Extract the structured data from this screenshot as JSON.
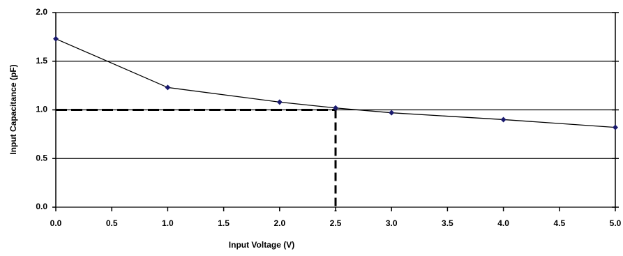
{
  "chart_data": {
    "type": "line",
    "x_label": "Input Voltage (V)",
    "y_label": "Input Capacitance (pF)",
    "x": [
      0,
      1,
      2,
      2.5,
      3,
      4,
      5
    ],
    "series": [
      {
        "name": "Input Capacitance",
        "color": "#000000",
        "marker_color": "#1a1a6e",
        "values": [
          1.73,
          1.23,
          1.08,
          1.02,
          0.97,
          0.9,
          0.82
        ]
      }
    ],
    "reference_point": {
      "x": 2.5,
      "y": 1.0
    },
    "xlim": [
      0,
      5
    ],
    "ylim": [
      0,
      2
    ],
    "xticks": [
      {
        "value": 0,
        "label": "0.0"
      },
      {
        "value": 0.5,
        "label": "0.5"
      },
      {
        "value": 1,
        "label": "1.0"
      },
      {
        "value": 1.5,
        "label": "1.5"
      },
      {
        "value": 2,
        "label": "2.0"
      },
      {
        "value": 2.5,
        "label": "2.5"
      },
      {
        "value": 3,
        "label": "3.0"
      },
      {
        "value": 3.5,
        "label": "3.5"
      },
      {
        "value": 4,
        "label": "4.0"
      },
      {
        "value": 4.5,
        "label": "4.5"
      },
      {
        "value": 5,
        "label": "5.0"
      }
    ],
    "yticks": [
      {
        "value": 0,
        "label": "0.0"
      },
      {
        "value": 0.5,
        "label": "0.5"
      },
      {
        "value": 1,
        "label": "1.0"
      },
      {
        "value": 1.5,
        "label": "1.5"
      },
      {
        "value": 2,
        "label": "2.0"
      }
    ],
    "grid": true
  }
}
